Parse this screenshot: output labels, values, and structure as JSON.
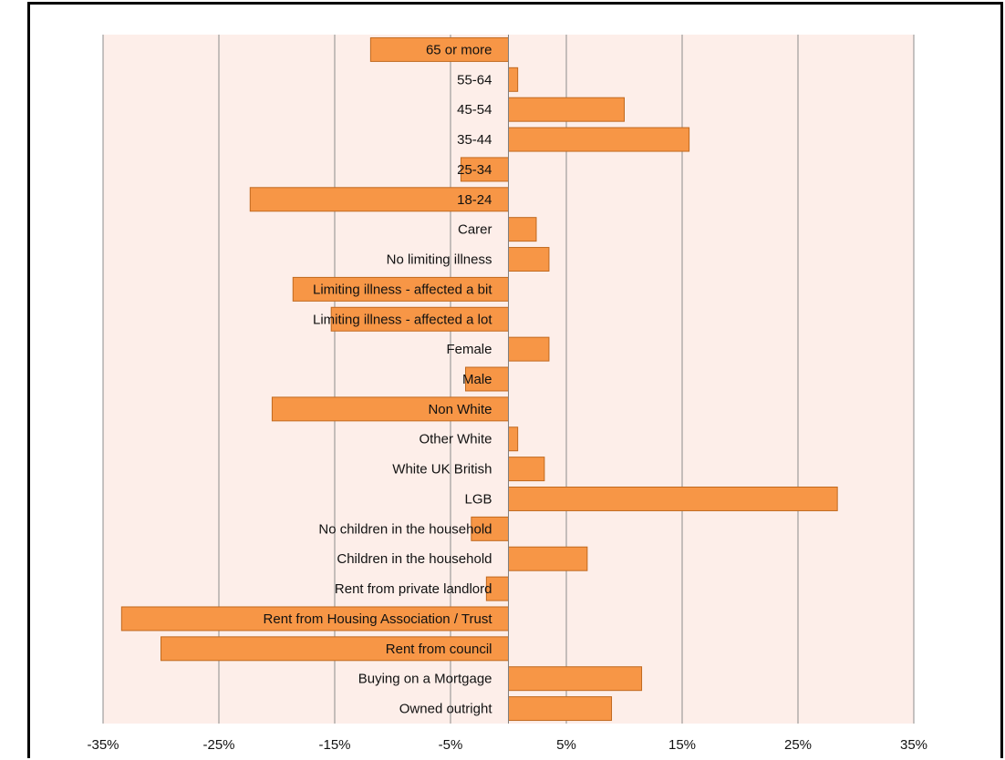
{
  "chart_data": {
    "type": "bar",
    "orientation": "horizontal",
    "title": "",
    "xlabel": "",
    "ylabel": "",
    "xlim": [
      -35,
      35
    ],
    "x_ticks": [
      "-35%",
      "-25%",
      "-15%",
      "-5%",
      "5%",
      "15%",
      "25%",
      "35%"
    ],
    "x_tick_values": [
      -35,
      -25,
      -15,
      -5,
      5,
      15,
      25,
      35
    ],
    "grid": "vertical",
    "categories": [
      "65 or more",
      "55-64",
      "45-54",
      "35-44",
      "25-34",
      "18-24",
      "Carer",
      "No limiting illness",
      "Limiting illness - affected a bit",
      "Limiting illness - affected a lot",
      "Female",
      "Male",
      "Non White",
      "Other White",
      "White UK British",
      "LGB",
      "No children in the household",
      "Children in the household",
      "Rent from private landlord",
      "Rent from Housing Association / Trust",
      "Rent from council",
      "Buying on a Mortgage",
      "Owned outright"
    ],
    "values": [
      -11.9,
      0.8,
      10.0,
      15.6,
      -4.1,
      -22.3,
      2.4,
      3.5,
      -18.6,
      -15.3,
      3.5,
      -3.7,
      -20.4,
      0.8,
      3.1,
      28.4,
      -3.2,
      6.8,
      -1.9,
      -33.4,
      -30.0,
      11.5,
      8.9
    ],
    "colors": {
      "bar": "#f79646",
      "bar_border": "#c0691f",
      "plot_background": "#fdeee9",
      "gridline": "#8c8c8c"
    }
  }
}
